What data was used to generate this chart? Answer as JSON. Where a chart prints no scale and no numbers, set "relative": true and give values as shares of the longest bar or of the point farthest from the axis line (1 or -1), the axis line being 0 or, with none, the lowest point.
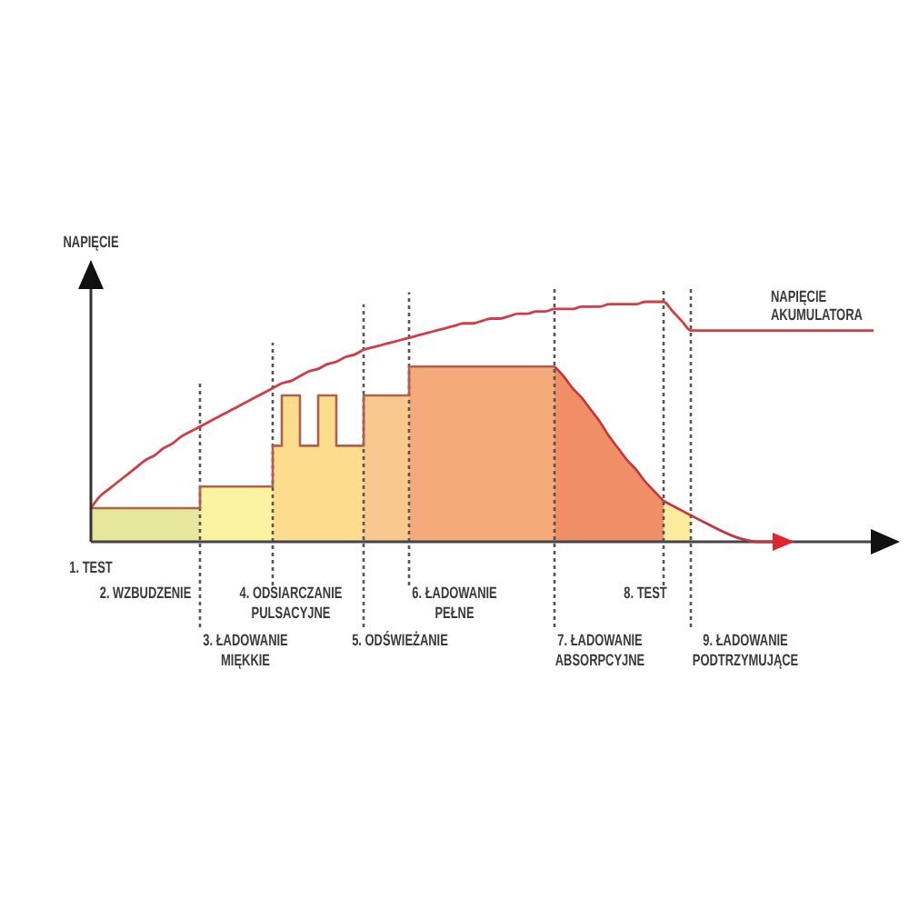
{
  "chart_data": {
    "type": "area",
    "relative": true,
    "ylabel": "NAPIĘCIE",
    "grid": "x",
    "categories": [
      null,
      null,
      null,
      null,
      null,
      null,
      null,
      null,
      null,
      null,
      null,
      null,
      null,
      null,
      null,
      null,
      null,
      null,
      null,
      null,
      null,
      null,
      null,
      null,
      null,
      null,
      null,
      null,
      null,
      null,
      null,
      null,
      null,
      null,
      null,
      null,
      null,
      null,
      null,
      null,
      null,
      null,
      null,
      null,
      null,
      null,
      null,
      null,
      null,
      null,
      null,
      null,
      null,
      null,
      null,
      null,
      null,
      null,
      null,
      null,
      null,
      null,
      null,
      null,
      null,
      null,
      null,
      null,
      null,
      null,
      null,
      null,
      null,
      null,
      null,
      null,
      null,
      null,
      null,
      null,
      null,
      null,
      null,
      null,
      null,
      null,
      null
    ],
    "series": [
      {
        "color": "#e5e79c",
        "values": [
          0.14,
          0.14,
          0.14,
          0.14,
          0.14,
          0.14,
          0.14,
          0.14,
          0.14,
          0.14,
          0.14,
          0.14,
          0.14,
          null,
          null,
          null,
          null,
          null,
          null,
          null,
          null,
          null,
          null,
          null,
          null,
          null,
          null,
          null,
          null,
          null,
          null,
          null,
          null,
          null,
          null,
          null,
          null,
          null,
          null,
          null,
          null,
          null,
          null,
          null,
          null,
          null,
          null,
          null,
          null,
          null,
          null,
          null,
          null,
          null,
          null,
          null,
          null,
          null,
          null,
          null,
          null,
          null,
          null,
          null,
          null,
          null,
          null,
          null,
          null,
          null,
          null,
          null,
          null,
          null,
          null,
          null,
          null,
          null,
          null,
          null,
          null,
          null,
          null,
          null,
          null,
          null,
          null
        ]
      },
      {
        "color": "#fbf3a0",
        "values": [
          null,
          null,
          null,
          null,
          null,
          null,
          null,
          null,
          null,
          null,
          null,
          null,
          0.23,
          0.23,
          0.23,
          0.23,
          0.23,
          0.23,
          0.23,
          0.23,
          0.23,
          null,
          null,
          null,
          null,
          null,
          null,
          null,
          null,
          null,
          null,
          null,
          null,
          null,
          null,
          null,
          null,
          null,
          null,
          null,
          null,
          null,
          null,
          null,
          null,
          null,
          null,
          null,
          null,
          null,
          null,
          null,
          null,
          null,
          null,
          null,
          null,
          null,
          null,
          null,
          null,
          null,
          null,
          null,
          null,
          null,
          null,
          null,
          null,
          null,
          null,
          null,
          null,
          null,
          null,
          null,
          null,
          null,
          null,
          null,
          null,
          null,
          null,
          null,
          null,
          null,
          null
        ]
      },
      {
        "color": "#fddc8e",
        "values": [
          null,
          null,
          null,
          null,
          null,
          null,
          null,
          null,
          null,
          null,
          null,
          null,
          null,
          null,
          null,
          null,
          null,
          null,
          null,
          null,
          0.4,
          0.4,
          null,
          null,
          null,
          null,
          null,
          null,
          null,
          null,
          null,
          null,
          null,
          null,
          null,
          null,
          null,
          null,
          null,
          null,
          null,
          null,
          null,
          null,
          null,
          null,
          null,
          null,
          null,
          null,
          null,
          null,
          null,
          null,
          null,
          null,
          null,
          null,
          null,
          null,
          null,
          null,
          null,
          null,
          null,
          null,
          null,
          null,
          null,
          null,
          null,
          null,
          null,
          null,
          null,
          null,
          null,
          null,
          null,
          null,
          null,
          null,
          null,
          null,
          null,
          null,
          null
        ]
      },
      {
        "color": "#fddc8e",
        "values": [
          null,
          null,
          null,
          null,
          null,
          null,
          null,
          null,
          null,
          null,
          null,
          null,
          null,
          null,
          null,
          null,
          null,
          null,
          null,
          null,
          null,
          0.61,
          0.61,
          0.61,
          null,
          null,
          null,
          null,
          null,
          null,
          null,
          null,
          null,
          null,
          null,
          null,
          null,
          null,
          null,
          null,
          null,
          null,
          null,
          null,
          null,
          null,
          null,
          null,
          null,
          null,
          null,
          null,
          null,
          null,
          null,
          null,
          null,
          null,
          null,
          null,
          null,
          null,
          null,
          null,
          null,
          null,
          null,
          null,
          null,
          null,
          null,
          null,
          null,
          null,
          null,
          null,
          null,
          null,
          null,
          null,
          null,
          null,
          null,
          null,
          null,
          null,
          null
        ]
      },
      {
        "color": "#fddc8e",
        "values": [
          null,
          null,
          null,
          null,
          null,
          null,
          null,
          null,
          null,
          null,
          null,
          null,
          null,
          null,
          null,
          null,
          null,
          null,
          null,
          null,
          null,
          null,
          null,
          0.4,
          0.4,
          0.4,
          null,
          null,
          null,
          null,
          null,
          null,
          null,
          null,
          null,
          null,
          null,
          null,
          null,
          null,
          null,
          null,
          null,
          null,
          null,
          null,
          null,
          null,
          null,
          null,
          null,
          null,
          null,
          null,
          null,
          null,
          null,
          null,
          null,
          null,
          null,
          null,
          null,
          null,
          null,
          null,
          null,
          null,
          null,
          null,
          null,
          null,
          null,
          null,
          null,
          null,
          null,
          null,
          null,
          null,
          null,
          null,
          null,
          null,
          null,
          null,
          null
        ]
      },
      {
        "color": "#fddc8e",
        "values": [
          null,
          null,
          null,
          null,
          null,
          null,
          null,
          null,
          null,
          null,
          null,
          null,
          null,
          null,
          null,
          null,
          null,
          null,
          null,
          null,
          null,
          null,
          null,
          null,
          null,
          0.61,
          0.61,
          0.61,
          null,
          null,
          null,
          null,
          null,
          null,
          null,
          null,
          null,
          null,
          null,
          null,
          null,
          null,
          null,
          null,
          null,
          null,
          null,
          null,
          null,
          null,
          null,
          null,
          null,
          null,
          null,
          null,
          null,
          null,
          null,
          null,
          null,
          null,
          null,
          null,
          null,
          null,
          null,
          null,
          null,
          null,
          null,
          null,
          null,
          null,
          null,
          null,
          null,
          null,
          null,
          null,
          null,
          null,
          null,
          null,
          null,
          null,
          null
        ]
      },
      {
        "color": "#fddc8e",
        "values": [
          null,
          null,
          null,
          null,
          null,
          null,
          null,
          null,
          null,
          null,
          null,
          null,
          null,
          null,
          null,
          null,
          null,
          null,
          null,
          null,
          null,
          null,
          null,
          null,
          null,
          null,
          null,
          0.4,
          0.4,
          0.4,
          0.4,
          null,
          null,
          null,
          null,
          null,
          null,
          null,
          null,
          null,
          null,
          null,
          null,
          null,
          null,
          null,
          null,
          null,
          null,
          null,
          null,
          null,
          null,
          null,
          null,
          null,
          null,
          null,
          null,
          null,
          null,
          null,
          null,
          null,
          null,
          null,
          null,
          null,
          null,
          null,
          null,
          null,
          null,
          null,
          null,
          null,
          null,
          null,
          null,
          null,
          null,
          null,
          null,
          null,
          null,
          null,
          null
        ]
      },
      {
        "color": "#f9c88e",
        "values": [
          null,
          null,
          null,
          null,
          null,
          null,
          null,
          null,
          null,
          null,
          null,
          null,
          null,
          null,
          null,
          null,
          null,
          null,
          null,
          null,
          null,
          null,
          null,
          null,
          null,
          null,
          null,
          null,
          null,
          null,
          0.61,
          0.61,
          0.61,
          0.61,
          0.61,
          0.61,
          null,
          null,
          null,
          null,
          null,
          null,
          null,
          null,
          null,
          null,
          null,
          null,
          null,
          null,
          null,
          null,
          null,
          null,
          null,
          null,
          null,
          null,
          null,
          null,
          null,
          null,
          null,
          null,
          null,
          null,
          null,
          null,
          null,
          null,
          null,
          null,
          null,
          null,
          null,
          null,
          null,
          null,
          null,
          null,
          null,
          null,
          null,
          null,
          null,
          null,
          null
        ]
      },
      {
        "color": "#f5aa7a",
        "values": [
          null,
          null,
          null,
          null,
          null,
          null,
          null,
          null,
          null,
          null,
          null,
          null,
          null,
          null,
          null,
          null,
          null,
          null,
          null,
          null,
          null,
          null,
          null,
          null,
          null,
          null,
          null,
          null,
          null,
          null,
          null,
          null,
          null,
          null,
          null,
          0.73,
          0.73,
          0.73,
          0.73,
          0.73,
          0.73,
          0.73,
          0.73,
          0.73,
          0.73,
          0.73,
          0.73,
          0.73,
          0.73,
          0.73,
          0.73,
          0.73,
          null,
          null,
          null,
          null,
          null,
          null,
          null,
          null,
          null,
          null,
          null,
          null,
          null,
          null,
          null,
          null,
          null,
          null,
          null,
          null,
          null,
          null,
          null,
          null,
          null,
          null,
          null,
          null,
          null,
          null,
          null,
          null,
          null,
          null,
          null
        ]
      },
      {
        "color": "#f08e68",
        "values": [
          null,
          null,
          null,
          null,
          null,
          null,
          null,
          null,
          null,
          null,
          null,
          null,
          null,
          null,
          null,
          null,
          null,
          null,
          null,
          null,
          null,
          null,
          null,
          null,
          null,
          null,
          null,
          null,
          null,
          null,
          null,
          null,
          null,
          null,
          null,
          null,
          null,
          null,
          null,
          null,
          null,
          null,
          null,
          null,
          null,
          null,
          null,
          null,
          null,
          null,
          null,
          0.73,
          0.69,
          0.64,
          0.6,
          0.55,
          0.5,
          0.44,
          0.39,
          0.34,
          0.3,
          0.25,
          0.21,
          0.17,
          null,
          null,
          null,
          null,
          null,
          null,
          null,
          null,
          null,
          null,
          null,
          null,
          null,
          null,
          null,
          null,
          null,
          null,
          null,
          null,
          null,
          null,
          null
        ]
      },
      {
        "color": "#fbeb9c",
        "values": [
          null,
          null,
          null,
          null,
          null,
          null,
          null,
          null,
          null,
          null,
          null,
          null,
          null,
          null,
          null,
          null,
          null,
          null,
          null,
          null,
          null,
          null,
          null,
          null,
          null,
          null,
          null,
          null,
          null,
          null,
          null,
          null,
          null,
          null,
          null,
          null,
          null,
          null,
          null,
          null,
          null,
          null,
          null,
          null,
          null,
          null,
          null,
          null,
          null,
          null,
          null,
          null,
          null,
          null,
          null,
          null,
          null,
          null,
          null,
          null,
          null,
          null,
          null,
          0.17,
          0.15,
          0.13,
          0.11,
          null,
          null,
          null,
          null,
          null,
          null,
          null,
          null,
          null,
          null,
          null,
          null,
          null,
          null,
          null,
          null,
          null,
          null,
          null,
          null
        ]
      },
      {
        "type": "step",
        "color": "#b0604e",
        "values": [
          0.14,
          0.14,
          0.14,
          0.14,
          0.14,
          0.14,
          0.14,
          0.14,
          0.14,
          0.14,
          0.14,
          0.14,
          0.23,
          0.23,
          0.23,
          0.23,
          0.23,
          0.23,
          0.23,
          0.23,
          0.4,
          0.61,
          0.61,
          0.4,
          0.4,
          0.61,
          0.61,
          0.4,
          0.4,
          0.4,
          0.61,
          0.61,
          0.61,
          0.61,
          0.61,
          0.73,
          0.73,
          0.73,
          0.73,
          0.73,
          0.73,
          0.73,
          0.73,
          0.73,
          0.73,
          0.73,
          0.73,
          0.73,
          0.73,
          0.73,
          0.73,
          0.73,
          null,
          null,
          null,
          null,
          null,
          null,
          null,
          null,
          null,
          null,
          null,
          null,
          null,
          null,
          null,
          null,
          null,
          null,
          null,
          null,
          null,
          null,
          null,
          null,
          null,
          null,
          null,
          null,
          null,
          null,
          null,
          null,
          null,
          null,
          null
        ]
      },
      {
        "type": "line",
        "name": "NAPIĘCIE AKUMULATORA",
        "color": "#d13c46",
        "values": [
          0.14,
          0.19,
          0.22,
          0.25,
          0.28,
          0.31,
          0.34,
          0.36,
          0.39,
          0.41,
          0.44,
          0.46,
          0.48,
          0.5,
          0.52,
          0.54,
          0.56,
          0.58,
          0.6,
          0.62,
          0.64,
          0.66,
          0.67,
          0.69,
          0.71,
          0.72,
          0.74,
          0.75,
          0.77,
          0.78,
          0.8,
          0.81,
          0.82,
          0.83,
          0.84,
          0.85,
          0.86,
          0.87,
          0.88,
          0.89,
          0.9,
          0.91,
          0.91,
          0.92,
          0.93,
          0.93,
          0.94,
          0.95,
          0.95,
          0.96,
          0.96,
          0.97,
          0.97,
          0.97,
          0.98,
          0.98,
          0.98,
          0.99,
          0.99,
          0.99,
          0.99,
          1,
          1,
          1,
          0.96,
          0.92,
          0.88,
          0.88,
          0.88,
          0.88,
          0.88,
          0.88,
          0.88,
          0.88,
          0.88,
          0.88,
          0.88,
          0.88,
          0.88,
          0.88,
          0.88,
          0.88,
          0.88,
          0.88,
          0.88,
          0.88,
          0.88
        ]
      }
    ],
    "annotations": [
      "1. TEST",
      "2. WZBUDZENIE",
      "3. ŁADOWANIE MIĘKKIE",
      "4. ODSIARCZANIE PULSACYJNE",
      "5. ODŚWIEŻANIE",
      "6. ŁADOWANIE PEŁNE",
      "7. ŁADOWANIE ABSORPCYJNE",
      "8. TEST",
      "9. ŁADOWANIE PODTRZYMUJĄCE"
    ]
  }
}
